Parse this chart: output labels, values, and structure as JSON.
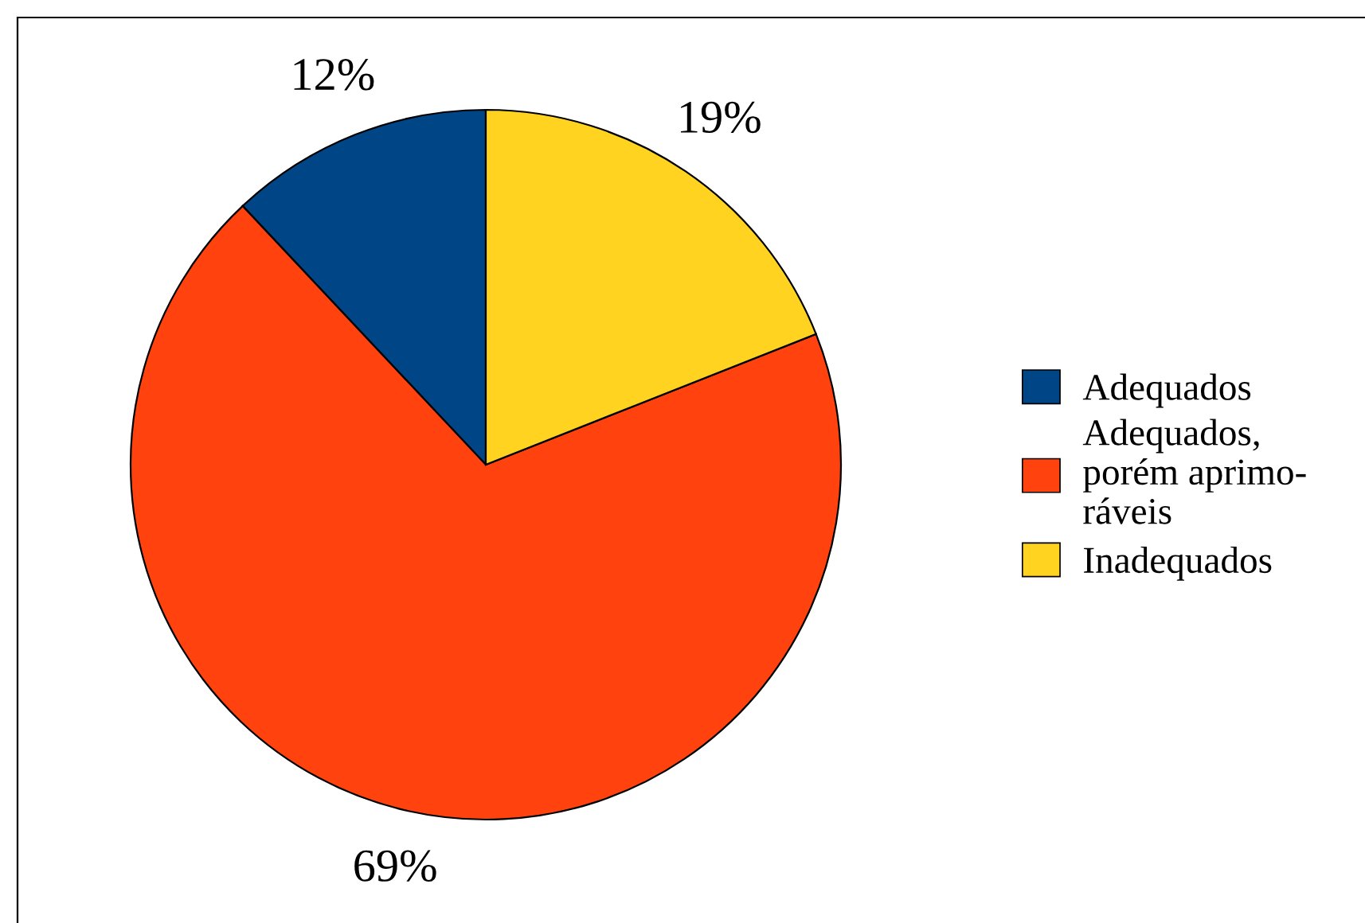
{
  "chart_data": {
    "type": "pie",
    "categories": [
      "Adequados",
      "Adequados,\nporém aprimo-\nráveis",
      "Inadequados"
    ],
    "values": [
      12,
      69,
      19
    ],
    "colors": [
      "#004586",
      "#ff420e",
      "#ffd320"
    ],
    "value_labels": [
      "12%",
      "69%",
      "19%"
    ],
    "legend": "right"
  }
}
